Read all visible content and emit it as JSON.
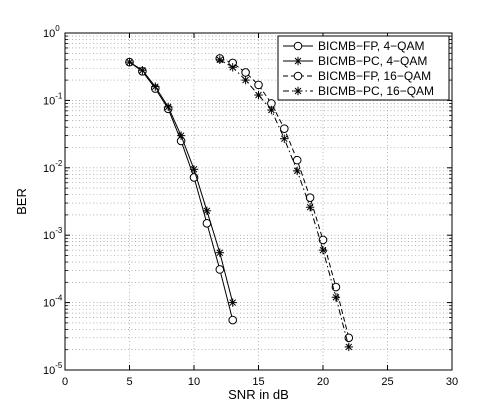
{
  "chart_data": {
    "type": "line",
    "title": "",
    "xlabel": "SNR in dB",
    "ylabel": "BER",
    "xlim": [
      0,
      30
    ],
    "ylim": [
      1e-05,
      1
    ],
    "yscale": "log",
    "grid": true,
    "legend_position": "top-right",
    "x_ticks": [
      "0",
      "5",
      "10",
      "15",
      "20",
      "25",
      "30"
    ],
    "y_ticks": [
      {
        "base": "10",
        "exp": "0"
      },
      {
        "base": "10",
        "exp": "-1"
      },
      {
        "base": "10",
        "exp": "-2"
      },
      {
        "base": "10",
        "exp": "-3"
      },
      {
        "base": "10",
        "exp": "-4"
      },
      {
        "base": "10",
        "exp": "-5"
      }
    ],
    "series": [
      {
        "name": "BICMB−FP, 4−QAM",
        "marker": "circle",
        "line": "solid",
        "x": [
          5,
          6,
          7,
          8,
          9,
          10,
          11,
          12,
          13
        ],
        "y": [
          0.37,
          0.27,
          0.15,
          0.075,
          0.025,
          0.0072,
          0.0015,
          0.00031,
          5.5e-05
        ]
      },
      {
        "name": "BICMB−PC, 4−QAM",
        "marker": "star",
        "line": "solid",
        "x": [
          5,
          6,
          7,
          8,
          9,
          10,
          11,
          12,
          13
        ],
        "y": [
          0.37,
          0.28,
          0.16,
          0.08,
          0.03,
          0.0095,
          0.0023,
          0.00055,
          0.0001
        ]
      },
      {
        "name": "BICMB−FP, 16−QAM",
        "marker": "circle",
        "line": "dashed",
        "x": [
          12,
          13,
          14,
          15,
          16,
          17,
          18,
          19,
          20,
          21,
          22
        ],
        "y": [
          0.42,
          0.36,
          0.26,
          0.17,
          0.09,
          0.038,
          0.013,
          0.0036,
          0.00085,
          0.00017,
          3e-05
        ]
      },
      {
        "name": "BICMB−PC, 16−QAM",
        "marker": "star",
        "line": "dashdot",
        "x": [
          12,
          13,
          14,
          15,
          16,
          17,
          18,
          19,
          20,
          21,
          22
        ],
        "y": [
          0.4,
          0.31,
          0.2,
          0.12,
          0.072,
          0.027,
          0.009,
          0.0026,
          0.0006,
          0.00012,
          2.2e-05
        ]
      }
    ]
  }
}
